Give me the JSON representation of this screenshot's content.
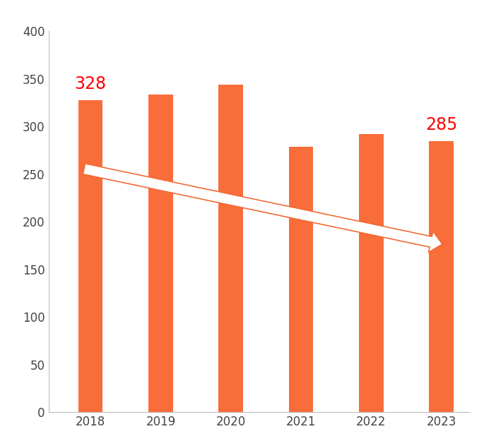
{
  "chart_data": {
    "type": "bar",
    "categories": [
      "2018",
      "2019",
      "2020",
      "2021",
      "2022",
      "2023"
    ],
    "values": [
      328,
      334,
      344,
      279,
      292,
      285
    ],
    "value_labels": [
      "328",
      null,
      null,
      null,
      null,
      "285"
    ],
    "data_labels": true,
    "color": "#f96d3a",
    "ylim": [
      0,
      400
    ],
    "yticks": [
      0,
      50,
      100,
      150,
      200,
      250,
      300,
      350,
      400
    ],
    "grid": false
  }
}
